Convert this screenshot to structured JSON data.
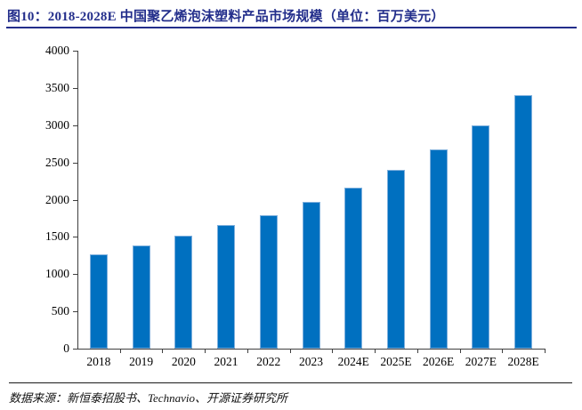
{
  "title": {
    "text": "图10：2018-2028E 中国聚乙烯泡沫塑料产品市场规模（单位：百万美元）"
  },
  "footer": {
    "text": "数据来源：新恒泰招股书、Technavio、开源证券研究所"
  },
  "colors": {
    "title": "#232E8B",
    "underline": "#232E8B",
    "bar": "#0070C0",
    "bar_edge": "#7FB0DD",
    "axis": "#3F3F3F",
    "footer_line": "#1A1A1A",
    "text": "#000000"
  },
  "chart_data": {
    "type": "bar",
    "title": "2018-2028E 中国聚乙烯泡沫塑料产品市场规模",
    "unit": "百万美元",
    "categories": [
      "2018",
      "2019",
      "2020",
      "2021",
      "2022",
      "2023",
      "2024E",
      "2025E",
      "2026E",
      "2027E",
      "2028E"
    ],
    "values": [
      1270,
      1380,
      1515,
      1655,
      1790,
      1975,
      2165,
      2405,
      2675,
      3000,
      3400
    ],
    "xlabel": "",
    "ylabel": "",
    "ylim": [
      0,
      4000
    ],
    "ytick_step": 500,
    "ytick_labels": [
      "0",
      "500",
      "1000",
      "1500",
      "2000",
      "2500",
      "3000",
      "3500",
      "4000"
    ],
    "grid": false,
    "legend_position": "none",
    "bar_color": "#0070C0"
  }
}
